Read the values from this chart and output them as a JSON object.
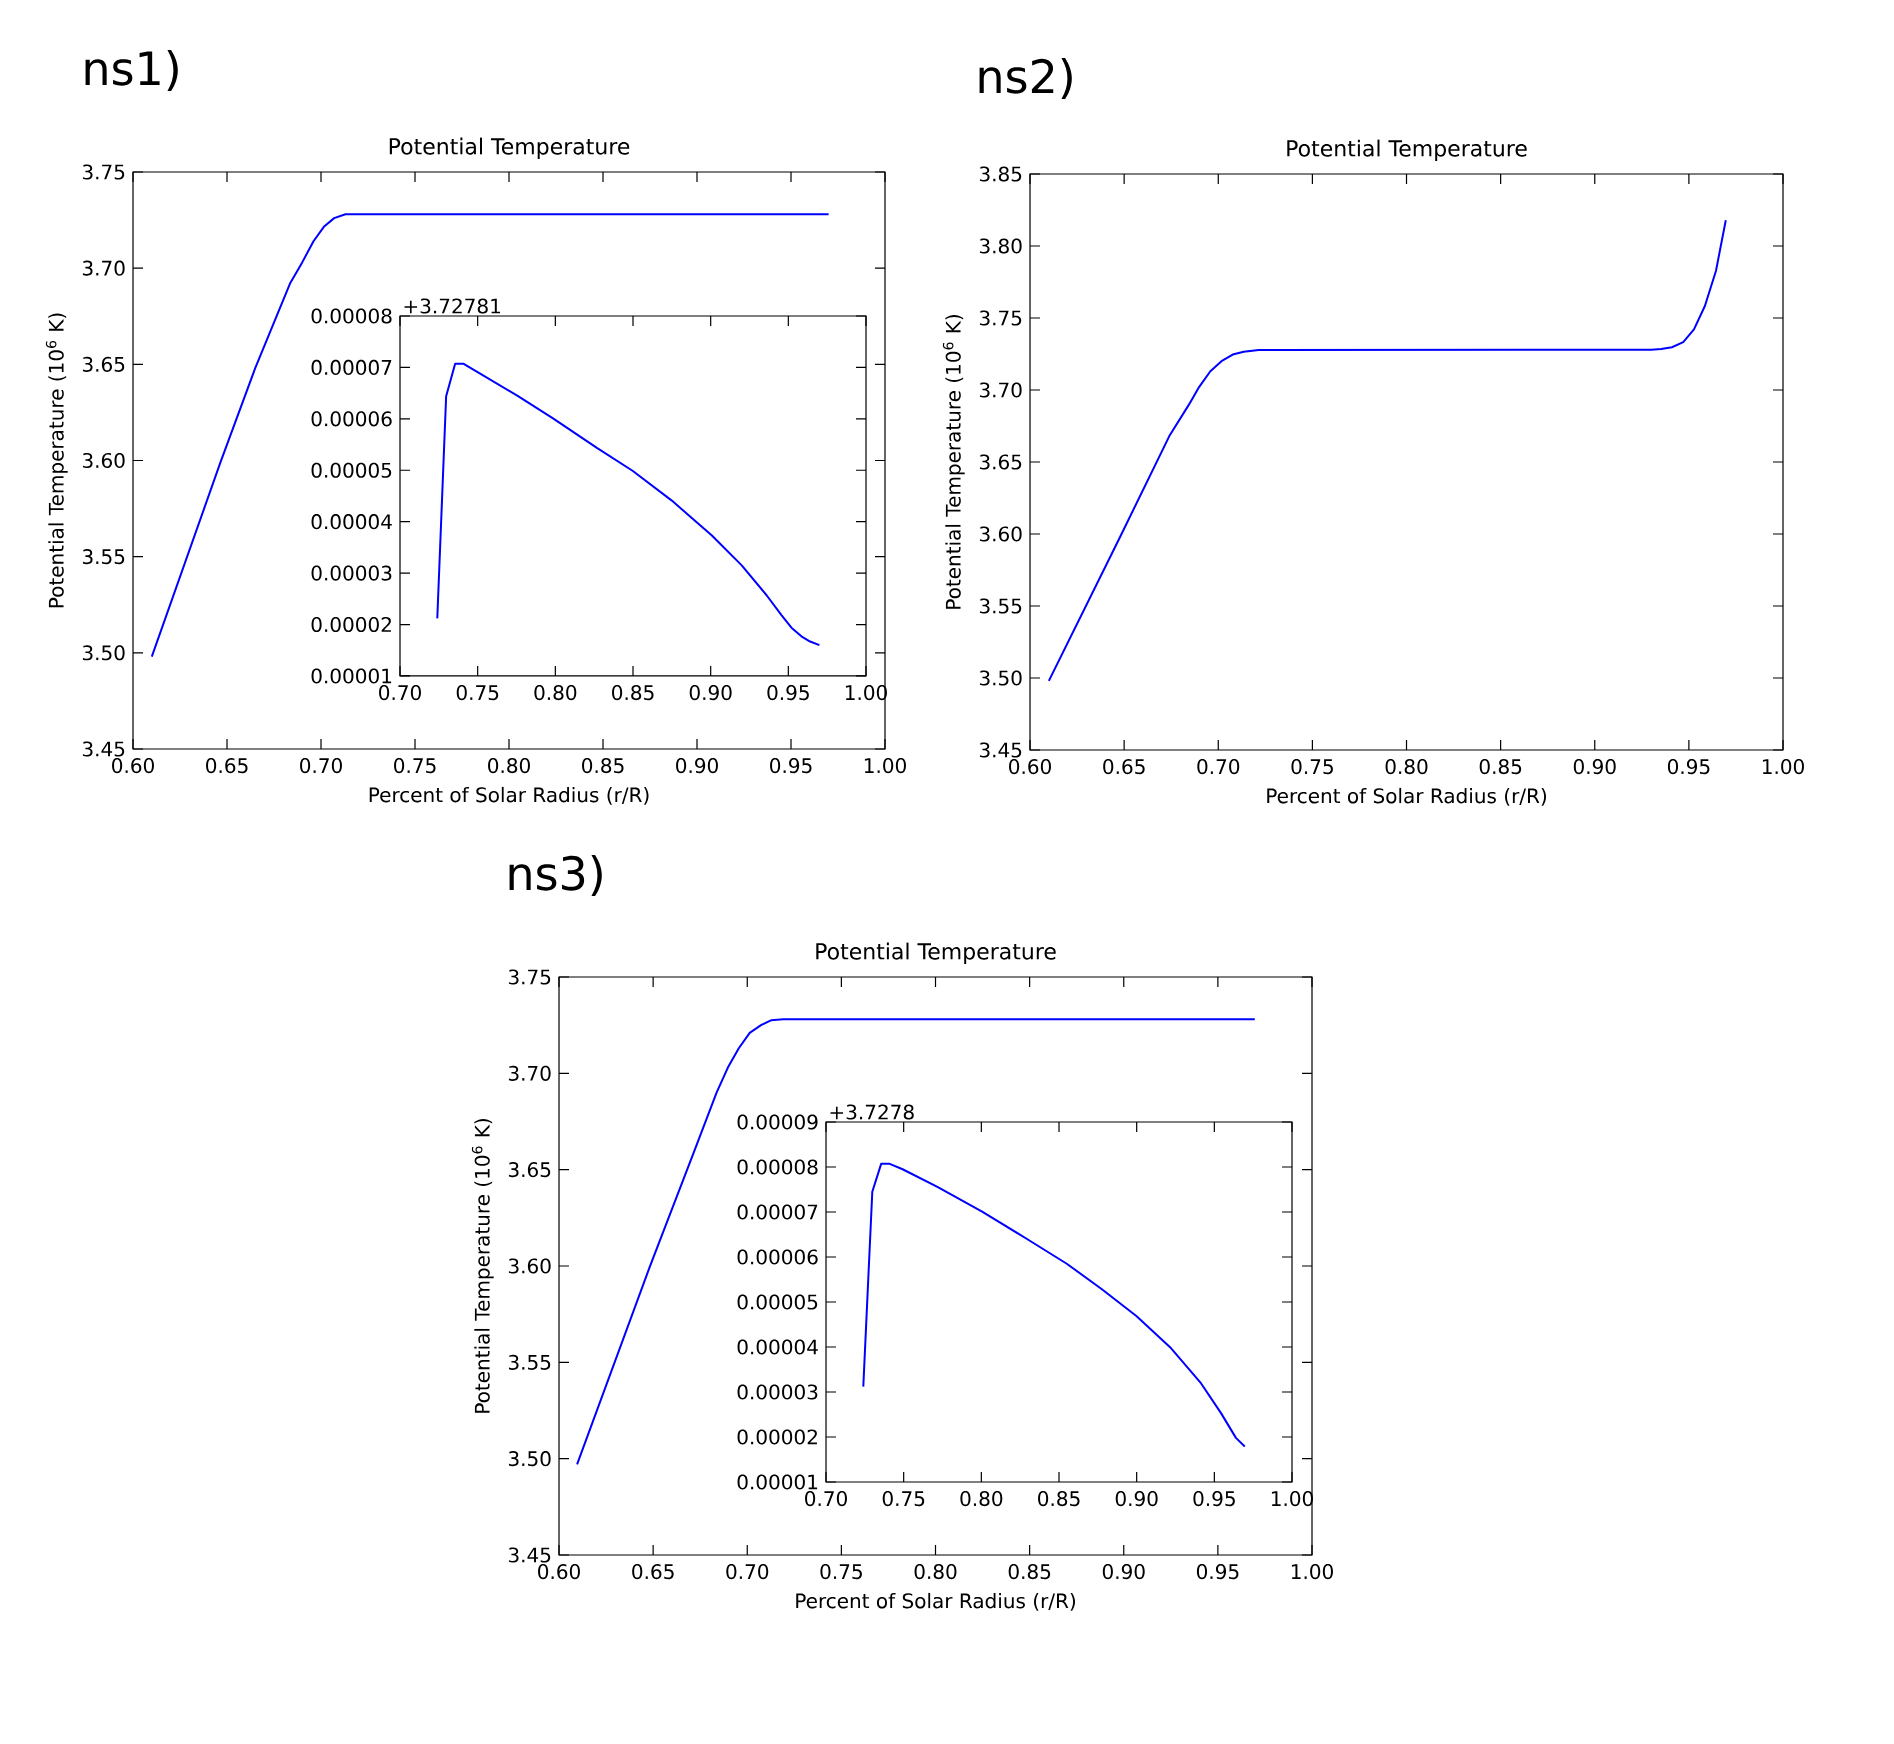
{
  "chart_data": [
    {
      "type": "line",
      "title": "Potential Temperature",
      "xlabel": "Percent of Solar Radius (r/R)",
      "ylabel": "Potential Temperature (10$^{6}$ K)",
      "annotations": [
        "ns1)"
      ],
      "color": "#0000ff",
      "x": [
        0.61,
        0.6465,
        0.665,
        0.6835,
        0.69,
        0.696,
        0.7015,
        0.707,
        0.713,
        0.723,
        0.97
      ],
      "values": [
        3.498,
        3.599,
        3.648,
        3.692,
        3.703,
        3.714,
        3.7215,
        3.726,
        3.728,
        3.728,
        3.728
      ],
      "xlim": [
        0.6,
        1.0
      ],
      "ylim": [
        3.45,
        3.75
      ],
      "xticks": [
        {
          "value": 0.6,
          "label": "0.60"
        },
        {
          "value": 0.65,
          "label": "0.65"
        },
        {
          "value": 0.7,
          "label": "0.70"
        },
        {
          "value": 0.75,
          "label": "0.75"
        },
        {
          "value": 0.8,
          "label": "0.80"
        },
        {
          "value": 0.85,
          "label": "0.85"
        },
        {
          "value": 0.9,
          "label": "0.90"
        },
        {
          "value": 0.95,
          "label": "0.95"
        },
        {
          "value": 1.0,
          "label": "1.00"
        }
      ],
      "yticks": [
        {
          "value": 3.45,
          "label": "3.45"
        },
        {
          "value": 3.5,
          "label": "3.50"
        },
        {
          "value": 3.55,
          "label": "3.55"
        },
        {
          "value": 3.6,
          "label": "3.60"
        },
        {
          "value": 3.65,
          "label": "3.65"
        },
        {
          "value": 3.7,
          "label": "3.70"
        },
        {
          "value": 3.75,
          "label": "3.75"
        }
      ]
    },
    {
      "type": "line",
      "annotations": [
        "+3.72781"
      ],
      "color": "#0000ff",
      "x": [
        0.724,
        0.7297,
        0.7355,
        0.741,
        0.7505,
        0.776,
        0.7985,
        0.827,
        0.8497,
        0.875,
        0.9008,
        0.92,
        0.936,
        0.9457,
        0.952,
        0.9584,
        0.964,
        0.97
      ],
      "values": [
        2.12e-05,
        6.44e-05,
        7.07e-05,
        7.07e-05,
        6.9e-05,
        6.44e-05,
        6.01e-05,
        5.43e-05,
        4.99e-05,
        4.41e-05,
        3.73e-05,
        3.15e-05,
        2.57e-05,
        2.18e-05,
        1.94e-05,
        1.77e-05,
        1.67e-05,
        1.6e-05
      ],
      "xlim": [
        0.7,
        1.0
      ],
      "ylim": [
        1e-05,
        8e-05
      ],
      "xticks": [
        {
          "value": 0.7,
          "label": "0.70"
        },
        {
          "value": 0.75,
          "label": "0.75"
        },
        {
          "value": 0.8,
          "label": "0.80"
        },
        {
          "value": 0.85,
          "label": "0.85"
        },
        {
          "value": 0.9,
          "label": "0.90"
        },
        {
          "value": 0.95,
          "label": "0.95"
        },
        {
          "value": 1.0,
          "label": "1.00"
        }
      ],
      "yticks": [
        {
          "value": 1e-05,
          "label": "0.00001"
        },
        {
          "value": 2e-05,
          "label": "0.00002"
        },
        {
          "value": 3e-05,
          "label": "0.00003"
        },
        {
          "value": 4e-05,
          "label": "0.00004"
        },
        {
          "value": 5e-05,
          "label": "0.00005"
        },
        {
          "value": 6e-05,
          "label": "0.00006"
        },
        {
          "value": 7e-05,
          "label": "0.00007"
        },
        {
          "value": 8e-05,
          "label": "0.00008"
        }
      ]
    },
    {
      "type": "line",
      "title": "Potential Temperature",
      "xlabel": "Percent of Solar Radius (r/R)",
      "ylabel": "Potential Temperature (10$^{6}$ K)",
      "annotations": [
        "ns2)"
      ],
      "color": "#0000ff",
      "x": [
        0.61,
        0.6475,
        0.674,
        0.6845,
        0.6898,
        0.6958,
        0.7017,
        0.7077,
        0.7135,
        0.7215,
        0.93,
        0.9353,
        0.941,
        0.947,
        0.9527,
        0.9585,
        0.9644,
        0.9696
      ],
      "values": [
        3.498,
        3.597,
        3.668,
        3.69,
        3.702,
        3.713,
        3.72,
        3.7246,
        3.7266,
        3.7277,
        3.728,
        3.7285,
        3.7297,
        3.7332,
        3.7421,
        3.7583,
        3.7828,
        3.8179
      ],
      "xlim": [
        0.6,
        1.0
      ],
      "ylim": [
        3.45,
        3.85
      ],
      "xticks": [
        {
          "value": 0.6,
          "label": "0.60"
        },
        {
          "value": 0.65,
          "label": "0.65"
        },
        {
          "value": 0.7,
          "label": "0.70"
        },
        {
          "value": 0.75,
          "label": "0.75"
        },
        {
          "value": 0.8,
          "label": "0.80"
        },
        {
          "value": 0.85,
          "label": "0.85"
        },
        {
          "value": 0.9,
          "label": "0.90"
        },
        {
          "value": 0.95,
          "label": "0.95"
        },
        {
          "value": 1.0,
          "label": "1.00"
        }
      ],
      "yticks": [
        {
          "value": 3.45,
          "label": "3.45"
        },
        {
          "value": 3.5,
          "label": "3.50"
        },
        {
          "value": 3.55,
          "label": "3.55"
        },
        {
          "value": 3.6,
          "label": "3.60"
        },
        {
          "value": 3.65,
          "label": "3.65"
        },
        {
          "value": 3.7,
          "label": "3.70"
        },
        {
          "value": 3.75,
          "label": "3.75"
        },
        {
          "value": 3.8,
          "label": "3.80"
        },
        {
          "value": 3.85,
          "label": "3.85"
        }
      ]
    },
    {
      "type": "line",
      "title": "Potential Temperature",
      "xlabel": "Percent of Solar Radius (r/R)",
      "ylabel": "Potential Temperature (10$^{6}$ K)",
      "annotations": [
        "ns3)"
      ],
      "color": "#0000ff",
      "x": [
        0.6096,
        0.648,
        0.672,
        0.6837,
        0.6897,
        0.6955,
        0.7013,
        0.7073,
        0.7126,
        0.7192,
        0.9696
      ],
      "values": [
        3.497,
        3.599,
        3.66,
        3.69,
        3.703,
        3.713,
        3.721,
        3.725,
        3.7275,
        3.728,
        3.728
      ],
      "xlim": [
        0.6,
        1.0
      ],
      "ylim": [
        3.45,
        3.75
      ],
      "xticks": [
        {
          "value": 0.6,
          "label": "0.60"
        },
        {
          "value": 0.65,
          "label": "0.65"
        },
        {
          "value": 0.7,
          "label": "0.70"
        },
        {
          "value": 0.75,
          "label": "0.75"
        },
        {
          "value": 0.8,
          "label": "0.80"
        },
        {
          "value": 0.85,
          "label": "0.85"
        },
        {
          "value": 0.9,
          "label": "0.90"
        },
        {
          "value": 0.95,
          "label": "0.95"
        },
        {
          "value": 1.0,
          "label": "1.00"
        }
      ],
      "yticks": [
        {
          "value": 3.45,
          "label": "3.45"
        },
        {
          "value": 3.5,
          "label": "3.50"
        },
        {
          "value": 3.55,
          "label": "3.55"
        },
        {
          "value": 3.6,
          "label": "3.60"
        },
        {
          "value": 3.65,
          "label": "3.65"
        },
        {
          "value": 3.7,
          "label": "3.70"
        },
        {
          "value": 3.75,
          "label": "3.75"
        }
      ]
    },
    {
      "type": "line",
      "annotations": [
        "+3.7278"
      ],
      "color": "#0000ff",
      "x": [
        0.724,
        0.7298,
        0.7355,
        0.741,
        0.7493,
        0.7717,
        0.8005,
        0.8294,
        0.855,
        0.8774,
        0.8998,
        0.9222,
        0.9415,
        0.9543,
        0.9639,
        0.9696
      ],
      "values": [
        3.12e-05,
        7.45e-05,
        8.07e-05,
        8.07e-05,
        7.95e-05,
        7.56e-05,
        7.01e-05,
        6.4e-05,
        5.85e-05,
        5.29e-05,
        4.69e-05,
        3.97e-05,
        3.19e-05,
        2.53e-05,
        1.98e-05,
        1.79e-05
      ],
      "xlim": [
        0.7,
        1.0
      ],
      "ylim": [
        1e-05,
        9e-05
      ],
      "xticks": [
        {
          "value": 0.7,
          "label": "0.70"
        },
        {
          "value": 0.75,
          "label": "0.75"
        },
        {
          "value": 0.8,
          "label": "0.80"
        },
        {
          "value": 0.85,
          "label": "0.85"
        },
        {
          "value": 0.9,
          "label": "0.90"
        },
        {
          "value": 0.95,
          "label": "0.95"
        },
        {
          "value": 1.0,
          "label": "1.00"
        }
      ],
      "yticks": [
        {
          "value": 1e-05,
          "label": "0.00001"
        },
        {
          "value": 2e-05,
          "label": "0.00002"
        },
        {
          "value": 3e-05,
          "label": "0.00003"
        },
        {
          "value": 4e-05,
          "label": "0.00004"
        },
        {
          "value": 5e-05,
          "label": "0.00005"
        },
        {
          "value": 6e-05,
          "label": "0.00006"
        },
        {
          "value": 7e-05,
          "label": "0.00007"
        },
        {
          "value": 8e-05,
          "label": "0.00008"
        },
        {
          "value": 9e-05,
          "label": "0.00009"
        }
      ]
    }
  ]
}
